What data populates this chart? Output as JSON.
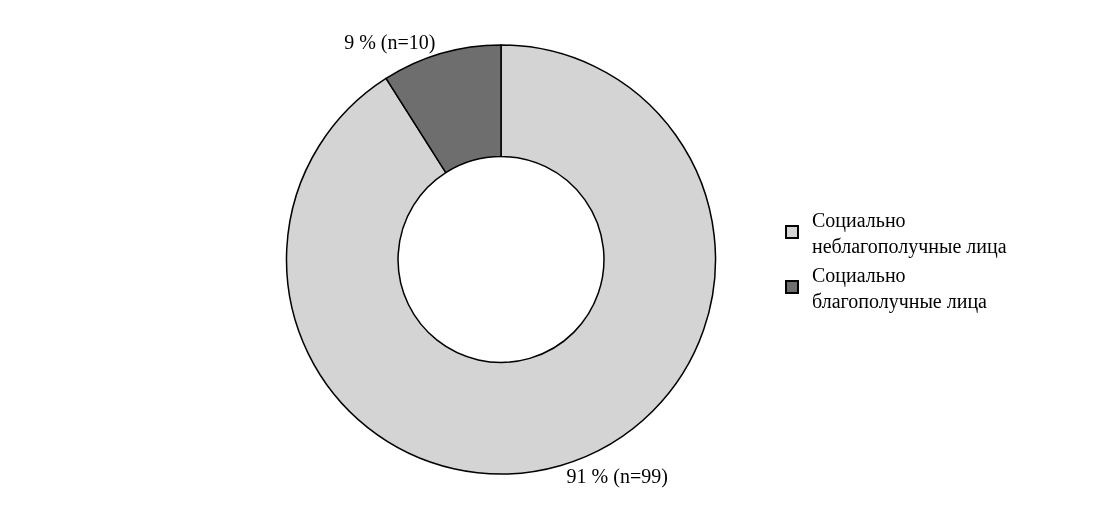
{
  "chart_data": {
    "type": "donut",
    "categories": [
      "Социально неблагополучные лица",
      "Социально благополучные лица"
    ],
    "values": [
      91,
      9
    ],
    "value_labels": [
      "91 % (n=99)",
      "9 % (n=10)"
    ],
    "colors": [
      "#d4d4d4",
      "#6e6e6e"
    ],
    "legend": "right"
  }
}
